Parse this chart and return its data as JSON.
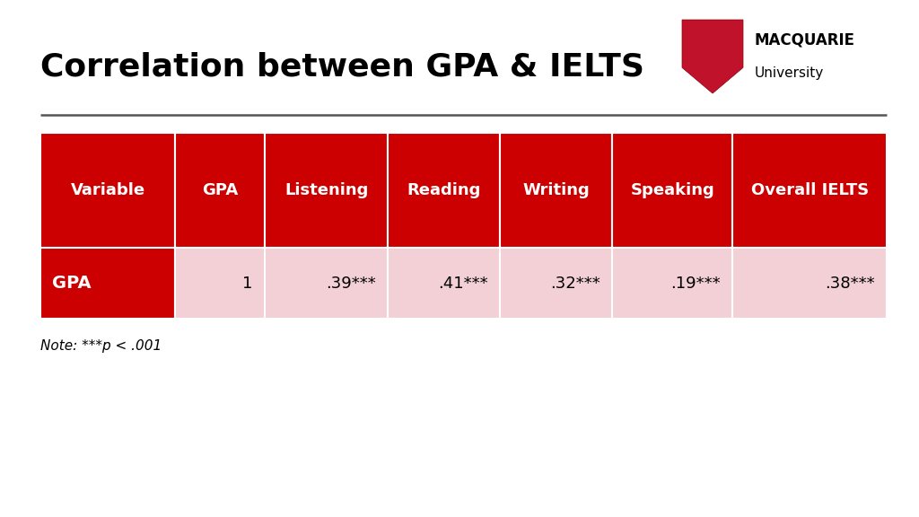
{
  "title": "Correlation between GPA & IELTS",
  "title_fontsize": 26,
  "title_fontweight": "bold",
  "title_color": "#000000",
  "bg_color": "#ffffff",
  "header_bg": "#cc0000",
  "header_text_color": "#ffffff",
  "row_bg": "#f2d0d5",
  "row_label_bg": "#cc0000",
  "row_label_color": "#ffffff",
  "separator_color": "#555555",
  "columns": [
    "Variable",
    "GPA",
    "Listening",
    "Reading",
    "Writing",
    "Speaking",
    "Overall IELTS"
  ],
  "data_row": [
    "GPA",
    "1",
    ".39***",
    ".41***",
    ".32***",
    ".19***",
    ".38***"
  ],
  "note": "Note: ***p < .001",
  "note_fontsize": 11,
  "col_weights": [
    1.18,
    0.78,
    1.08,
    0.98,
    0.98,
    1.05,
    1.35
  ]
}
